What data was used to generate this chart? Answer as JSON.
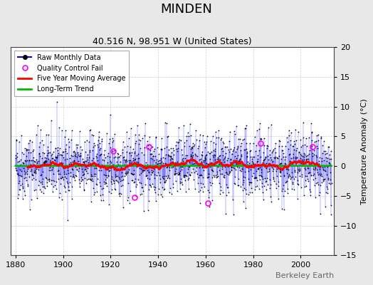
{
  "title": "MINDEN",
  "subtitle": "40.516 N, 98.951 W (United States)",
  "ylabel": "Temperature Anomaly (°C)",
  "xlim": [
    1878,
    2014
  ],
  "ylim": [
    -15,
    20
  ],
  "yticks": [
    -15,
    -10,
    -5,
    0,
    5,
    10,
    15,
    20
  ],
  "xticks": [
    1880,
    1900,
    1920,
    1940,
    1960,
    1980,
    2000
  ],
  "x_start": 1880,
  "x_end": 2013,
  "seed": 42,
  "n_months": 1596,
  "raw_color": "#0000ff",
  "ma_color": "#ff0000",
  "trend_color": "#00bb00",
  "qc_color": "#ff00ff",
  "dot_color": "#000000",
  "plot_bg": "#ffffff",
  "fig_bg": "#e8e8e8",
  "watermark": "Berkeley Earth",
  "qc_points": [
    {
      "year": 1921,
      "val": 2.5
    },
    {
      "year": 1930,
      "val": -5.2
    },
    {
      "year": 1936,
      "val": 3.2
    },
    {
      "year": 1961,
      "val": -6.2
    },
    {
      "year": 1983,
      "val": 3.8
    },
    {
      "year": 2005,
      "val": 3.2
    }
  ]
}
